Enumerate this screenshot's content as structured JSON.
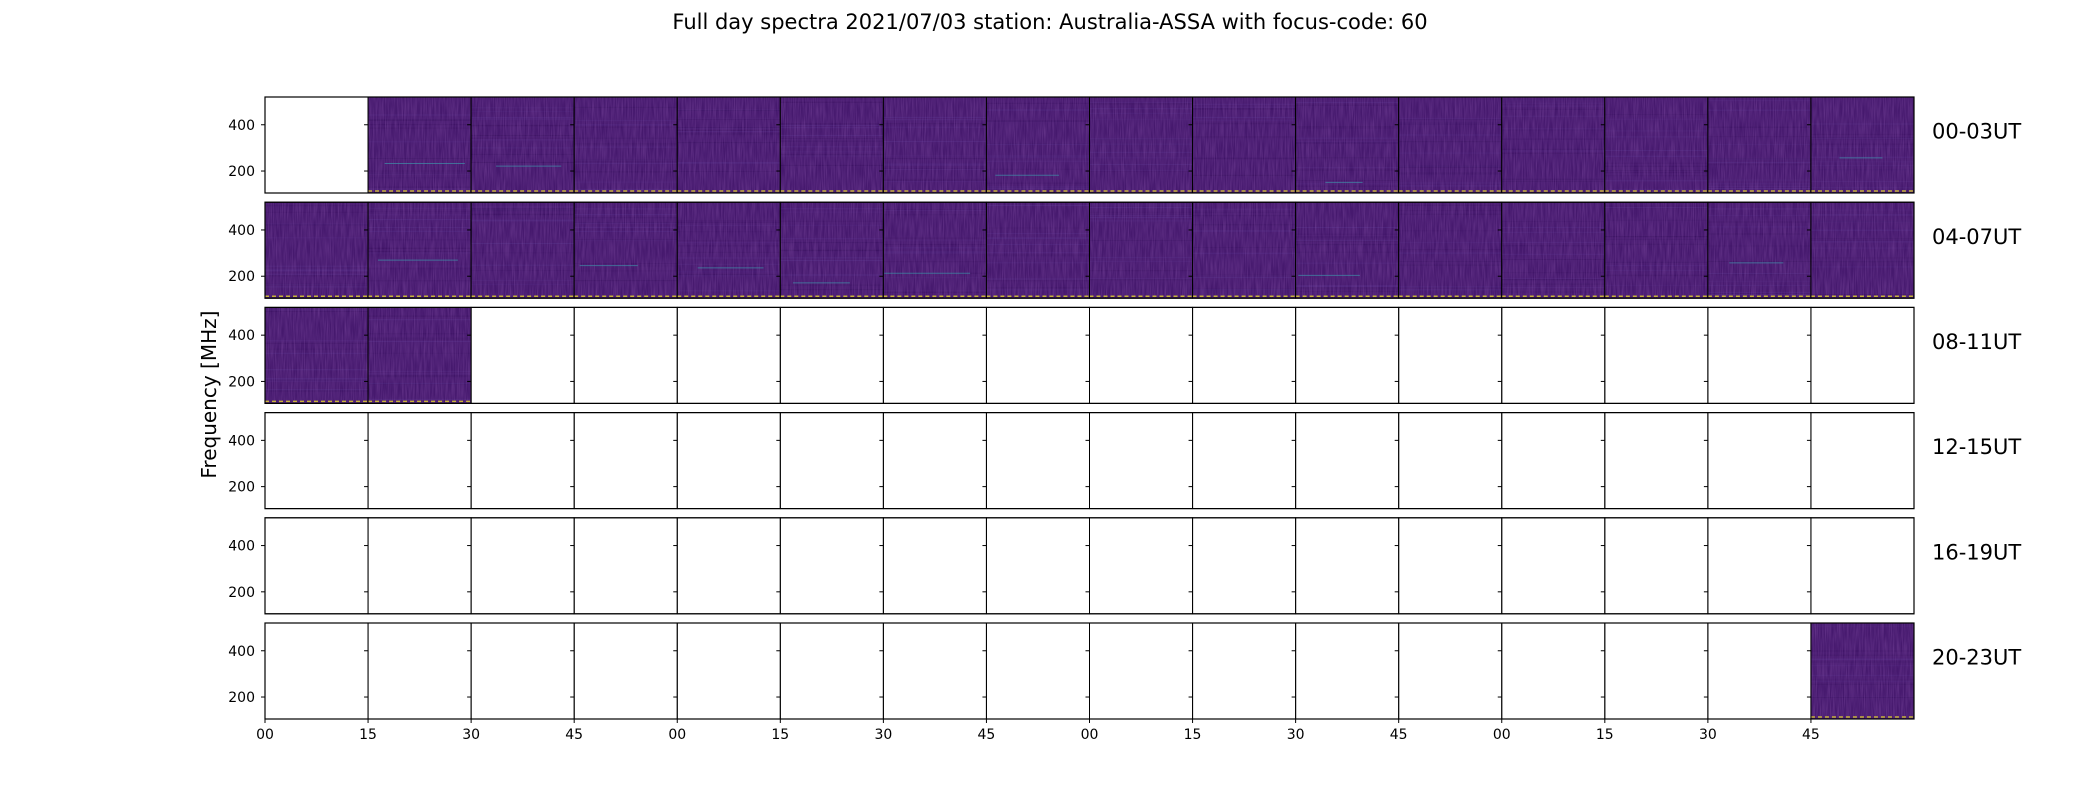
{
  "chart_data": {
    "type": "heatmap",
    "title": "Full day spectra 2021/07/03 station: Australia-ASSA with focus-code: 60",
    "ylabel": "Frequency [MHz]",
    "y_ticks": [
      200,
      400
    ],
    "ylim": [
      105,
      520
    ],
    "x_tick_labels": [
      "00",
      "15",
      "30",
      "45",
      "00",
      "15",
      "30",
      "45",
      "00",
      "15",
      "30",
      "45",
      "00",
      "15",
      "30",
      "45"
    ],
    "panels_per_row": 16,
    "panel_minutes": 15,
    "rows": [
      {
        "label": "00-03UT",
        "filled": [
          false,
          true,
          true,
          true,
          true,
          true,
          true,
          true,
          true,
          true,
          true,
          true,
          true,
          true,
          true,
          true
        ]
      },
      {
        "label": "04-07UT",
        "filled": [
          true,
          true,
          true,
          true,
          true,
          true,
          true,
          true,
          true,
          true,
          true,
          true,
          true,
          true,
          true,
          true
        ]
      },
      {
        "label": "08-11UT",
        "filled": [
          true,
          true,
          false,
          false,
          false,
          false,
          false,
          false,
          false,
          false,
          false,
          false,
          false,
          false,
          false,
          false
        ]
      },
      {
        "label": "12-15UT",
        "filled": [
          false,
          false,
          false,
          false,
          false,
          false,
          false,
          false,
          false,
          false,
          false,
          false,
          false,
          false,
          false,
          false
        ]
      },
      {
        "label": "16-19UT",
        "filled": [
          false,
          false,
          false,
          false,
          false,
          false,
          false,
          false,
          false,
          false,
          false,
          false,
          false,
          false,
          false,
          false
        ]
      },
      {
        "label": "20-23UT",
        "filled": [
          false,
          false,
          false,
          false,
          false,
          false,
          false,
          false,
          false,
          false,
          false,
          false,
          false,
          false,
          false,
          true
        ]
      }
    ],
    "colormap": {
      "background": "#46196e",
      "noise_dark": "#3b1262",
      "noise_light": "#4f2880",
      "feature": "#3f8fa8",
      "band_edge": "#c8b43a"
    }
  }
}
